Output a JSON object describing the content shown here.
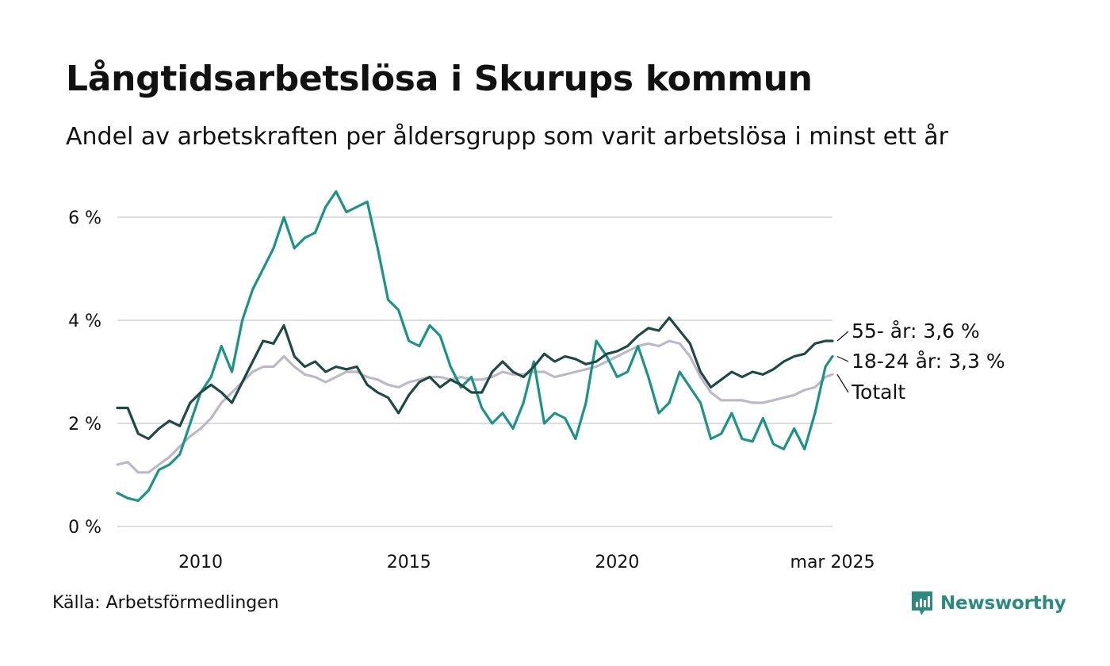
{
  "title": "Långtidsarbetslösa i Skurups kommun",
  "subtitle": "Andel av arbetskraften per åldersgrupp som varit arbetslösa i minst ett år",
  "source": "Källa: Arbetsförmedlingen",
  "brand": "Newsworthy",
  "colors": {
    "age55": "#1f4a44",
    "age18": "#1a9485",
    "total": "#bdb8c8",
    "grid": "#dcdce2",
    "brand": "#2a8a7e"
  },
  "chart_data": {
    "type": "line",
    "unit": "%",
    "y_ticks": [
      "0 %",
      "2 %",
      "4 %",
      "6 %"
    ],
    "y_tick_values": [
      0,
      2,
      4,
      6
    ],
    "x_ticks": [
      "2010",
      "2015",
      "2020",
      "mar 2025"
    ],
    "x_tick_values": [
      2010.0,
      2015.0,
      2020.0,
      2025.17
    ],
    "ylim": [
      0,
      6.6
    ],
    "xlim": [
      2008.0,
      2025.17
    ],
    "grid": true,
    "series": [
      {
        "name": "55- år",
        "end_label": "55- år: 3,6 %",
        "color_key": "age55",
        "points": [
          [
            2008.0,
            2.3
          ],
          [
            2008.25,
            2.3
          ],
          [
            2008.5,
            1.8
          ],
          [
            2008.75,
            1.7
          ],
          [
            2009.0,
            1.9
          ],
          [
            2009.25,
            2.05
          ],
          [
            2009.5,
            1.95
          ],
          [
            2009.75,
            2.4
          ],
          [
            2010.0,
            2.6
          ],
          [
            2010.25,
            2.75
          ],
          [
            2010.5,
            2.6
          ],
          [
            2010.75,
            2.4
          ],
          [
            2011.0,
            2.8
          ],
          [
            2011.25,
            3.2
          ],
          [
            2011.5,
            3.6
          ],
          [
            2011.75,
            3.55
          ],
          [
            2012.0,
            3.9
          ],
          [
            2012.25,
            3.3
          ],
          [
            2012.5,
            3.1
          ],
          [
            2012.75,
            3.2
          ],
          [
            2013.0,
            3.0
          ],
          [
            2013.25,
            3.1
          ],
          [
            2013.5,
            3.05
          ],
          [
            2013.75,
            3.1
          ],
          [
            2014.0,
            2.75
          ],
          [
            2014.25,
            2.6
          ],
          [
            2014.5,
            2.5
          ],
          [
            2014.75,
            2.2
          ],
          [
            2015.0,
            2.55
          ],
          [
            2015.25,
            2.8
          ],
          [
            2015.5,
            2.9
          ],
          [
            2015.75,
            2.7
          ],
          [
            2016.0,
            2.85
          ],
          [
            2016.25,
            2.75
          ],
          [
            2016.5,
            2.6
          ],
          [
            2016.75,
            2.6
          ],
          [
            2017.0,
            3.0
          ],
          [
            2017.25,
            3.2
          ],
          [
            2017.5,
            3.0
          ],
          [
            2017.75,
            2.9
          ],
          [
            2018.0,
            3.1
          ],
          [
            2018.25,
            3.35
          ],
          [
            2018.5,
            3.2
          ],
          [
            2018.75,
            3.3
          ],
          [
            2019.0,
            3.25
          ],
          [
            2019.25,
            3.15
          ],
          [
            2019.5,
            3.2
          ],
          [
            2019.75,
            3.35
          ],
          [
            2020.0,
            3.4
          ],
          [
            2020.25,
            3.5
          ],
          [
            2020.5,
            3.7
          ],
          [
            2020.75,
            3.85
          ],
          [
            2021.0,
            3.8
          ],
          [
            2021.25,
            4.05
          ],
          [
            2021.5,
            3.8
          ],
          [
            2021.75,
            3.55
          ],
          [
            2022.0,
            3.0
          ],
          [
            2022.25,
            2.7
          ],
          [
            2022.5,
            2.85
          ],
          [
            2022.75,
            3.0
          ],
          [
            2023.0,
            2.9
          ],
          [
            2023.25,
            3.0
          ],
          [
            2023.5,
            2.95
          ],
          [
            2023.75,
            3.05
          ],
          [
            2024.0,
            3.2
          ],
          [
            2024.25,
            3.3
          ],
          [
            2024.5,
            3.35
          ],
          [
            2024.75,
            3.55
          ],
          [
            2025.0,
            3.6
          ],
          [
            2025.17,
            3.6
          ]
        ]
      },
      {
        "name": "18-24 år",
        "end_label": "18-24 år: 3,3 %",
        "color_key": "age18",
        "points": [
          [
            2008.0,
            0.65
          ],
          [
            2008.25,
            0.55
          ],
          [
            2008.5,
            0.5
          ],
          [
            2008.75,
            0.7
          ],
          [
            2009.0,
            1.1
          ],
          [
            2009.25,
            1.2
          ],
          [
            2009.5,
            1.4
          ],
          [
            2009.75,
            2.0
          ],
          [
            2010.0,
            2.6
          ],
          [
            2010.25,
            2.9
          ],
          [
            2010.5,
            3.5
          ],
          [
            2010.75,
            3.0
          ],
          [
            2011.0,
            4.0
          ],
          [
            2011.25,
            4.6
          ],
          [
            2011.5,
            5.0
          ],
          [
            2011.75,
            5.4
          ],
          [
            2012.0,
            6.0
          ],
          [
            2012.25,
            5.4
          ],
          [
            2012.5,
            5.6
          ],
          [
            2012.75,
            5.7
          ],
          [
            2013.0,
            6.2
          ],
          [
            2013.25,
            6.5
          ],
          [
            2013.5,
            6.1
          ],
          [
            2013.75,
            6.2
          ],
          [
            2014.0,
            6.3
          ],
          [
            2014.25,
            5.4
          ],
          [
            2014.5,
            4.4
          ],
          [
            2014.75,
            4.2
          ],
          [
            2015.0,
            3.6
          ],
          [
            2015.25,
            3.5
          ],
          [
            2015.5,
            3.9
          ],
          [
            2015.75,
            3.7
          ],
          [
            2016.0,
            3.1
          ],
          [
            2016.25,
            2.7
          ],
          [
            2016.5,
            2.9
          ],
          [
            2016.75,
            2.3
          ],
          [
            2017.0,
            2.0
          ],
          [
            2017.25,
            2.2
          ],
          [
            2017.5,
            1.9
          ],
          [
            2017.75,
            2.4
          ],
          [
            2018.0,
            3.2
          ],
          [
            2018.25,
            2.0
          ],
          [
            2018.5,
            2.2
          ],
          [
            2018.75,
            2.1
          ],
          [
            2019.0,
            1.7
          ],
          [
            2019.25,
            2.4
          ],
          [
            2019.5,
            3.6
          ],
          [
            2019.75,
            3.3
          ],
          [
            2020.0,
            2.9
          ],
          [
            2020.25,
            3.0
          ],
          [
            2020.5,
            3.5
          ],
          [
            2020.75,
            2.9
          ],
          [
            2021.0,
            2.2
          ],
          [
            2021.25,
            2.4
          ],
          [
            2021.5,
            3.0
          ],
          [
            2021.75,
            2.7
          ],
          [
            2022.0,
            2.4
          ],
          [
            2022.25,
            1.7
          ],
          [
            2022.5,
            1.8
          ],
          [
            2022.75,
            2.2
          ],
          [
            2023.0,
            1.7
          ],
          [
            2023.25,
            1.65
          ],
          [
            2023.5,
            2.1
          ],
          [
            2023.75,
            1.6
          ],
          [
            2024.0,
            1.5
          ],
          [
            2024.25,
            1.9
          ],
          [
            2024.5,
            1.5
          ],
          [
            2024.75,
            2.2
          ],
          [
            2025.0,
            3.1
          ],
          [
            2025.17,
            3.3
          ]
        ]
      },
      {
        "name": "Totalt",
        "end_label": "Totalt",
        "color_key": "total",
        "points": [
          [
            2008.0,
            1.2
          ],
          [
            2008.25,
            1.25
          ],
          [
            2008.5,
            1.05
          ],
          [
            2008.75,
            1.05
          ],
          [
            2009.0,
            1.2
          ],
          [
            2009.25,
            1.35
          ],
          [
            2009.5,
            1.55
          ],
          [
            2009.75,
            1.75
          ],
          [
            2010.0,
            1.9
          ],
          [
            2010.25,
            2.1
          ],
          [
            2010.5,
            2.4
          ],
          [
            2010.75,
            2.6
          ],
          [
            2011.0,
            2.8
          ],
          [
            2011.25,
            3.0
          ],
          [
            2011.5,
            3.1
          ],
          [
            2011.75,
            3.1
          ],
          [
            2012.0,
            3.3
          ],
          [
            2012.25,
            3.1
          ],
          [
            2012.5,
            2.95
          ],
          [
            2012.75,
            2.9
          ],
          [
            2013.0,
            2.8
          ],
          [
            2013.25,
            2.9
          ],
          [
            2013.5,
            3.0
          ],
          [
            2013.75,
            3.0
          ],
          [
            2014.0,
            2.9
          ],
          [
            2014.25,
            2.85
          ],
          [
            2014.5,
            2.75
          ],
          [
            2014.75,
            2.7
          ],
          [
            2015.0,
            2.8
          ],
          [
            2015.25,
            2.85
          ],
          [
            2015.5,
            2.9
          ],
          [
            2015.75,
            2.9
          ],
          [
            2016.0,
            2.85
          ],
          [
            2016.25,
            2.9
          ],
          [
            2016.5,
            2.85
          ],
          [
            2016.75,
            2.85
          ],
          [
            2017.0,
            2.9
          ],
          [
            2017.25,
            3.0
          ],
          [
            2017.5,
            2.95
          ],
          [
            2017.75,
            2.95
          ],
          [
            2018.0,
            3.0
          ],
          [
            2018.25,
            3.0
          ],
          [
            2018.5,
            2.9
          ],
          [
            2018.75,
            2.95
          ],
          [
            2019.0,
            3.0
          ],
          [
            2019.25,
            3.05
          ],
          [
            2019.5,
            3.1
          ],
          [
            2019.75,
            3.2
          ],
          [
            2020.0,
            3.3
          ],
          [
            2020.25,
            3.4
          ],
          [
            2020.5,
            3.5
          ],
          [
            2020.75,
            3.55
          ],
          [
            2021.0,
            3.5
          ],
          [
            2021.25,
            3.6
          ],
          [
            2021.5,
            3.55
          ],
          [
            2021.75,
            3.3
          ],
          [
            2022.0,
            2.9
          ],
          [
            2022.25,
            2.6
          ],
          [
            2022.5,
            2.45
          ],
          [
            2022.75,
            2.45
          ],
          [
            2023.0,
            2.45
          ],
          [
            2023.25,
            2.4
          ],
          [
            2023.5,
            2.4
          ],
          [
            2023.75,
            2.45
          ],
          [
            2024.0,
            2.5
          ],
          [
            2024.25,
            2.55
          ],
          [
            2024.5,
            2.65
          ],
          [
            2024.75,
            2.7
          ],
          [
            2025.0,
            2.9
          ],
          [
            2025.17,
            2.95
          ]
        ]
      }
    ]
  }
}
